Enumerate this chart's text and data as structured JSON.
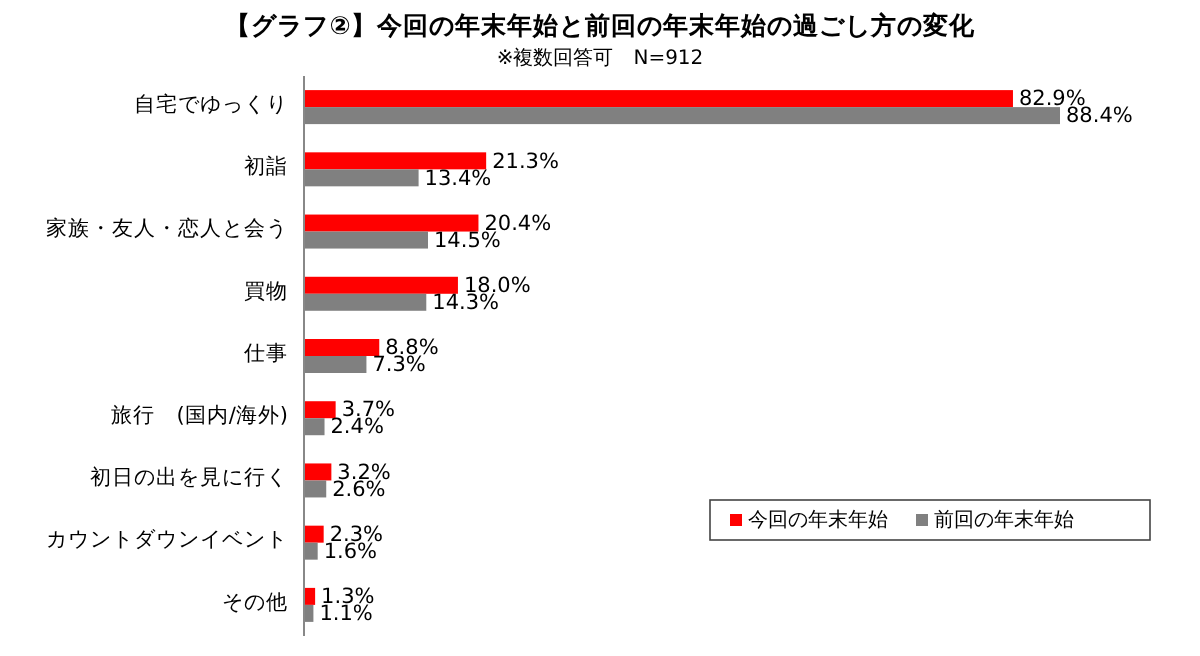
{
  "chart_data": {
    "type": "bar",
    "orientation": "horizontal",
    "title": "【グラフ②】今回の年末年始と前回の年末年始の過ごし方の変化",
    "subtitle": "※複数回答可　N=912",
    "categories": [
      "自宅でゆっくり",
      "初詣",
      "家族・友人・恋人と会う",
      "買物",
      "仕事",
      "旅行　(国内/海外)",
      "初日の出を見に行く",
      "カウントダウンイベント",
      "その他"
    ],
    "series": [
      {
        "name": "今回の年末年始",
        "color": "#ff0000",
        "values": [
          82.9,
          21.3,
          20.4,
          18.0,
          8.8,
          3.7,
          3.2,
          2.3,
          1.3
        ],
        "value_labels": [
          "82.9%",
          "21.3%",
          "20.4%",
          "18.0%",
          "8.8%",
          "3.7%",
          "3.2%",
          "2.3%",
          "1.3%"
        ]
      },
      {
        "name": "前回の年末年始",
        "color": "#808080",
        "values": [
          88.4,
          13.4,
          14.5,
          14.3,
          7.3,
          2.4,
          2.6,
          1.6,
          1.1
        ],
        "value_labels": [
          "88.4%",
          "13.4%",
          "14.5%",
          "14.3%",
          "7.3%",
          "2.4%",
          "2.6%",
          "1.6%",
          "1.1%"
        ]
      }
    ],
    "legend": "bottom right"
  }
}
